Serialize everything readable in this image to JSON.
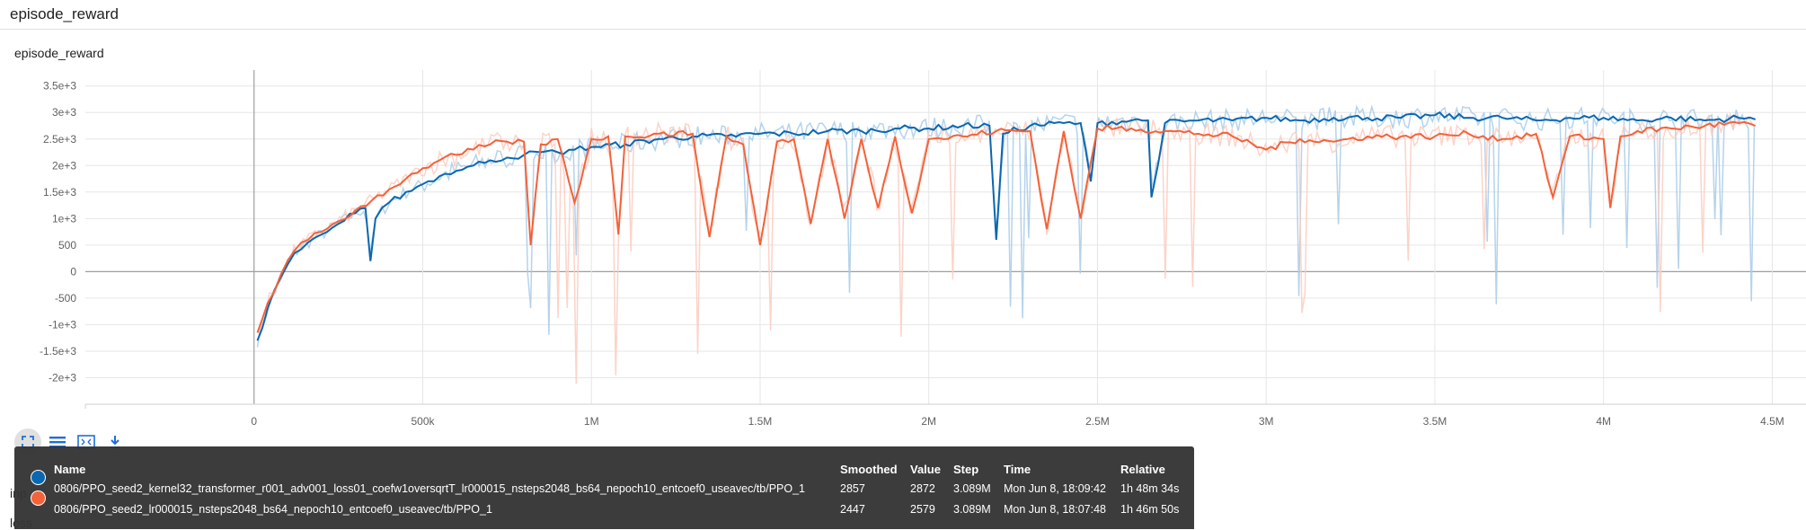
{
  "page": {
    "title": "episode_reward",
    "card_title": "episode_reward",
    "under_text_1": "inp",
    "under_text_2": "loss"
  },
  "toolbar": {
    "items": [
      {
        "name": "fit-domain",
        "icon": "fullscreen-icon"
      },
      {
        "name": "toggle-log-scale",
        "icon": "list-icon"
      },
      {
        "name": "fit-domain-to-data",
        "icon": "fit-data-icon"
      },
      {
        "name": "download",
        "icon": "download-icon"
      }
    ]
  },
  "colors": {
    "series1": "#0A67B0",
    "series2": "#F4623A",
    "series1_raw": "#A8CBE8",
    "series2_raw": "#FBCBBE",
    "grid": "#e6e6e6",
    "zero_axis": "#9e9e9e",
    "tick_text": "#616161"
  },
  "legend": {
    "headers": {
      "name": "Name",
      "smoothed": "Smoothed",
      "value": "Value",
      "step": "Step",
      "time": "Time",
      "relative": "Relative"
    },
    "rows": [
      {
        "name": "0806/PPO_seed2_kernel32_transformer_r001_adv001_loss01_coefw1oversqrtT_lr000015_nsteps2048_bs64_nepoch10_entcoef0_useavec/tb/PPO_1",
        "smoothed": "2857",
        "value": "2872",
        "step": "3.089M",
        "time": "Mon Jun 8, 18:09:42",
        "relative": "1h 48m 34s"
      },
      {
        "name": "0806/PPO_seed2_lr000015_nsteps2048_bs64_nepoch10_entcoef0_useavec/tb/PPO_1",
        "smoothed": "2447",
        "value": "2579",
        "step": "3.089M",
        "time": "Mon Jun 8, 18:07:48",
        "relative": "1h 46m 50s"
      }
    ]
  },
  "chart_data": {
    "type": "line",
    "title": "episode_reward",
    "xlabel": "",
    "ylabel": "",
    "xlim": [
      -500000,
      4600000
    ],
    "ylim": [
      -2500,
      3800
    ],
    "x_ticks": [
      0,
      500000,
      1000000,
      1500000,
      2000000,
      2500000,
      3000000,
      3500000,
      4000000,
      4500000
    ],
    "x_tick_labels": [
      "0",
      "500k",
      "1M",
      "1.5M",
      "2M",
      "2.5M",
      "3M",
      "3.5M",
      "4M",
      "4.5M"
    ],
    "y_ticks": [
      -2000,
      -1500,
      -1000,
      -500,
      0,
      500,
      1000,
      1500,
      2000,
      2500,
      3000,
      3500
    ],
    "y_tick_labels": [
      "-2e+3",
      "-1.5e+3",
      "-1e+3",
      "-500",
      "0",
      "500",
      "1e+3",
      "1.5e+3",
      "2e+3",
      "2.5e+3",
      "3e+3",
      "3.5e+3"
    ],
    "grid": true,
    "legend_position": "bottom",
    "series": [
      {
        "name": "0806/PPO_seed2_kernel32_transformer_r001_adv001_loss01_coefw1oversqrtT_lr000015_nsteps2048_bs64_nepoch10_entcoef0_useavec/tb/PPO_1",
        "color": "#0A67B0",
        "smoothed": {
          "x": [
            10000,
            40000,
            80000,
            120000,
            160000,
            200000,
            250000,
            300000,
            330000,
            345000,
            360000,
            400000,
            450000,
            500000,
            550000,
            600000,
            650000,
            700000,
            750000,
            800000,
            850000,
            900000,
            950000,
            1000000,
            1100000,
            1200000,
            1300000,
            1400000,
            1500000,
            1600000,
            1700000,
            1800000,
            1900000,
            2000000,
            2100000,
            2180000,
            2200000,
            2220000,
            2300000,
            2400000,
            2450000,
            2480000,
            2500000,
            2600000,
            2650000,
            2660000,
            2700000,
            2800000,
            2900000,
            3000000,
            3100000,
            3200000,
            3300000,
            3400000,
            3500000,
            3600000,
            3700000,
            3800000,
            3900000,
            4000000,
            4100000,
            4200000,
            4300000,
            4400000,
            4450000
          ],
          "y": [
            -1300,
            -700,
            -100,
            350,
            550,
            700,
            900,
            1100,
            1200,
            200,
            1000,
            1300,
            1500,
            1650,
            1800,
            1900,
            2000,
            2100,
            2150,
            2200,
            2250,
            2250,
            2300,
            2350,
            2400,
            2500,
            2550,
            2550,
            2600,
            2600,
            2650,
            2650,
            2700,
            2700,
            2750,
            2750,
            600,
            2600,
            2750,
            2800,
            2800,
            1700,
            2800,
            2850,
            2850,
            1400,
            2800,
            2850,
            2850,
            2900,
            2850,
            2900,
            2900,
            2900,
            2950,
            2900,
            2900,
            2850,
            2900,
            2900,
            2850,
            2900,
            2850,
            2900,
            2870
          ]
        }
      },
      {
        "name": "0806/PPO_seed2_lr000015_nsteps2048_bs64_nepoch10_entcoef0_useavec/tb/PPO_1",
        "color": "#F4623A",
        "smoothed": {
          "x": [
            10000,
            40000,
            80000,
            120000,
            160000,
            200000,
            250000,
            300000,
            350000,
            400000,
            450000,
            500000,
            550000,
            600000,
            650000,
            700000,
            750000,
            800000,
            820000,
            850000,
            900000,
            950000,
            1000000,
            1050000,
            1080000,
            1100000,
            1200000,
            1300000,
            1350000,
            1400000,
            1450000,
            1500000,
            1550000,
            1600000,
            1650000,
            1700000,
            1750000,
            1800000,
            1850000,
            1900000,
            1950000,
            2000000,
            2100000,
            2200000,
            2300000,
            2350000,
            2400000,
            2450000,
            2500000,
            2600000,
            2700000,
            2800000,
            2900000,
            3000000,
            3100000,
            3200000,
            3300000,
            3400000,
            3500000,
            3600000,
            3700000,
            3800000,
            3850000,
            3900000,
            4000000,
            4020000,
            4050000,
            4100000,
            4200000,
            4300000,
            4400000,
            4450000
          ],
          "y": [
            -1150,
            -600,
            -50,
            400,
            600,
            750,
            950,
            1150,
            1350,
            1550,
            1750,
            1950,
            2100,
            2200,
            2300,
            2400,
            2450,
            2450,
            500,
            2400,
            2500,
            1300,
            2500,
            2550,
            700,
            2550,
            2600,
            2600,
            650,
            2550,
            2400,
            500,
            2450,
            2500,
            900,
            2500,
            1000,
            2500,
            1200,
            2550,
            1100,
            2500,
            2550,
            2650,
            2650,
            800,
            2650,
            1000,
            2700,
            2700,
            2650,
            2600,
            2550,
            2300,
            2500,
            2450,
            2550,
            2550,
            2550,
            2600,
            2500,
            2600,
            1400,
            2550,
            2500,
            1200,
            2550,
            2650,
            2700,
            2750,
            2800,
            2750
          ]
        }
      }
    ]
  }
}
